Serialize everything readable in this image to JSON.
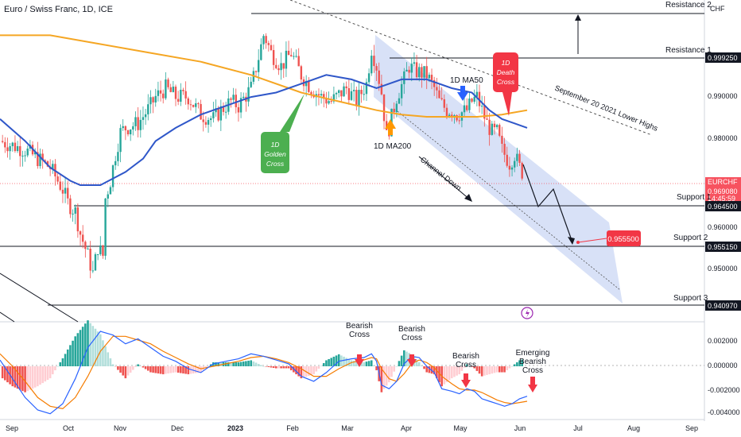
{
  "chart_data": {
    "type": "candlestick",
    "title": "Euro / Swiss Franc, 1D, ICE",
    "currency": "CHF",
    "symbol": "EURCHF",
    "last_price": "0.969080",
    "countdown": "14:45:59",
    "x_ticks": [
      "Sep",
      "Oct",
      "Nov",
      "Dec",
      "2023",
      "Feb",
      "Mar",
      "Apr",
      "May",
      "Jun",
      "Jul",
      "Aug",
      "Sep"
    ],
    "y_ticks": [
      "0.990000",
      "0.980000",
      "0.960000",
      "0.950000"
    ],
    "ylim": [
      0.935,
      1.008
    ],
    "series_path": [
      [
        0,
        0.976
      ],
      [
        10,
        0.974
      ],
      [
        20,
        0.97
      ],
      [
        25,
        0.965
      ],
      [
        27,
        0.962
      ],
      [
        30,
        0.96
      ],
      [
        32,
        0.955
      ],
      [
        35,
        0.95
      ],
      [
        37,
        0.946
      ],
      [
        39,
        0.952
      ],
      [
        41,
        0.95
      ],
      [
        42,
        0.963
      ],
      [
        44,
        0.967
      ],
      [
        46,
        0.973
      ],
      [
        48,
        0.978
      ],
      [
        50,
        0.979
      ],
      [
        55,
        0.98
      ],
      [
        60,
        0.984
      ],
      [
        62,
        0.986
      ],
      [
        66,
        0.988
      ],
      [
        70,
        0.986
      ],
      [
        75,
        0.986
      ],
      [
        80,
        0.982
      ],
      [
        85,
        0.981
      ],
      [
        88,
        0.983
      ],
      [
        92,
        0.985
      ],
      [
        95,
        0.984
      ],
      [
        100,
        0.988
      ],
      [
        103,
        0.995
      ],
      [
        105,
        1.0
      ],
      [
        106,
        0.999
      ],
      [
        108,
        0.996
      ],
      [
        112,
        0.993
      ],
      [
        116,
        0.996
      ],
      [
        120,
        0.991
      ],
      [
        124,
        0.988
      ],
      [
        128,
        0.986
      ],
      [
        132,
        0.985
      ],
      [
        138,
        0.988
      ],
      [
        142,
        0.985
      ],
      [
        146,
        0.989
      ],
      [
        148,
        0.997
      ],
      [
        150,
        0.993
      ],
      [
        152,
        0.987
      ],
      [
        153,
        0.982
      ],
      [
        154,
        0.977
      ],
      [
        155,
        0.979
      ],
      [
        158,
        0.986
      ],
      [
        161,
        0.99
      ],
      [
        163,
        0.993
      ],
      [
        165,
        0.992
      ],
      [
        170,
        0.991
      ],
      [
        173,
        0.988
      ],
      [
        175,
        0.985
      ],
      [
        178,
        0.983
      ],
      [
        180,
        0.983
      ],
      [
        182,
        0.982
      ],
      [
        186,
        0.983
      ],
      [
        188,
        0.985
      ],
      [
        190,
        0.986
      ],
      [
        192,
        0.983
      ],
      [
        194,
        0.98
      ],
      [
        196,
        0.978
      ],
      [
        198,
        0.978
      ],
      [
        200,
        0.974
      ],
      [
        202,
        0.972
      ],
      [
        203,
        0.971
      ],
      [
        205,
        0.973
      ],
      [
        207,
        0.97
      ],
      [
        208,
        0.969
      ]
    ],
    "ma50": [
      [
        0,
        0.981
      ],
      [
        10,
        0.976
      ],
      [
        20,
        0.97
      ],
      [
        28,
        0.967
      ],
      [
        32,
        0.966
      ],
      [
        40,
        0.966
      ],
      [
        50,
        0.969
      ],
      [
        57,
        0.972
      ],
      [
        62,
        0.976
      ],
      [
        70,
        0.979
      ],
      [
        80,
        0.982
      ],
      [
        90,
        0.984
      ],
      [
        100,
        0.986
      ],
      [
        110,
        0.987
      ],
      [
        120,
        0.989
      ],
      [
        130,
        0.991
      ],
      [
        140,
        0.99
      ],
      [
        150,
        0.988
      ],
      [
        160,
        0.99
      ],
      [
        170,
        0.99
      ],
      [
        180,
        0.988
      ],
      [
        188,
        0.987
      ],
      [
        195,
        0.983
      ],
      [
        200,
        0.981
      ],
      [
        205,
        0.98
      ],
      [
        210,
        0.979
      ]
    ],
    "ma200": [
      [
        0,
        1.0
      ],
      [
        20,
        1.0
      ],
      [
        40,
        0.998
      ],
      [
        60,
        0.996
      ],
      [
        80,
        0.994
      ],
      [
        100,
        0.991
      ],
      [
        120,
        0.987
      ],
      [
        135,
        0.985
      ],
      [
        150,
        0.983
      ],
      [
        160,
        0.982
      ],
      [
        170,
        0.9815
      ],
      [
        180,
        0.9815
      ],
      [
        190,
        0.9815
      ],
      [
        200,
        0.982
      ],
      [
        210,
        0.983
      ]
    ],
    "resistance_levels": [
      {
        "name": "Resistance 2",
        "value": null
      },
      {
        "name": "Resistance 1",
        "value": "0.999250"
      }
    ],
    "support_levels": [
      {
        "name": "Support 1",
        "value": "0.964500"
      },
      {
        "name": "Support 2",
        "value": "0.955150"
      },
      {
        "name": "Support 3",
        "value": "0.940970"
      }
    ],
    "target": "0.955500",
    "annotations": [
      {
        "text": "1D MA50"
      },
      {
        "text": "1D MA200"
      },
      {
        "text": "1D Death Cross"
      },
      {
        "text": "1D Golden Cross"
      },
      {
        "text": "September 20 2021 Lower Highs"
      },
      {
        "text": "Channel Down"
      }
    ],
    "macd": {
      "y_ticks": [
        "0.002000",
        "0.000000",
        "-0.002000",
        "-0.004000"
      ],
      "ylim": [
        -0.0042,
        0.0035
      ],
      "annotations": [
        "Bearish Cross",
        "Bearish Cross",
        "Bearish Cross",
        "Emerging Bearish Cross"
      ],
      "macd_line": [
        [
          0,
          0.0005
        ],
        [
          5,
          -0.001
        ],
        [
          10,
          -0.0025
        ],
        [
          15,
          -0.0035
        ],
        [
          20,
          -0.0038
        ],
        [
          25,
          -0.003
        ],
        [
          30,
          -0.001
        ],
        [
          35,
          0.0015
        ],
        [
          40,
          0.0028
        ],
        [
          45,
          0.0025
        ],
        [
          50,
          0.0018
        ],
        [
          55,
          0.0022
        ],
        [
          60,
          0.0015
        ],
        [
          65,
          0.0008
        ],
        [
          70,
          0.0004
        ],
        [
          75,
          -0.0002
        ],
        [
          80,
          -0.0005
        ],
        [
          85,
          0.0002
        ],
        [
          90,
          0.0004
        ],
        [
          95,
          0.0006
        ],
        [
          100,
          0.001
        ],
        [
          105,
          0.0008
        ],
        [
          110,
          0.0005
        ],
        [
          115,
          0.0002
        ],
        [
          120,
          -0.0008
        ],
        [
          125,
          -0.0012
        ],
        [
          130,
          -0.0005
        ],
        [
          135,
          0.0004
        ],
        [
          140,
          0.0006
        ],
        [
          145,
          0.0007
        ],
        [
          148,
          0.001
        ],
        [
          150,
          0.0004
        ],
        [
          152,
          -0.0015
        ],
        [
          155,
          -0.0018
        ],
        [
          158,
          -0.0012
        ],
        [
          161,
          0.0002
        ],
        [
          164,
          0.0008
        ],
        [
          167,
          0.0007
        ],
        [
          170,
          0.0
        ],
        [
          173,
          -0.0005
        ],
        [
          176,
          -0.0018
        ],
        [
          180,
          -0.002
        ],
        [
          183,
          -0.0022
        ],
        [
          186,
          -0.0018
        ],
        [
          189,
          -0.002
        ],
        [
          192,
          -0.0026
        ],
        [
          195,
          -0.0028
        ],
        [
          198,
          -0.003
        ],
        [
          201,
          -0.0032
        ],
        [
          204,
          -0.003
        ],
        [
          207,
          -0.0026
        ],
        [
          210,
          -0.0024
        ]
      ],
      "signal_line": [
        [
          0,
          0.001
        ],
        [
          5,
          0.0
        ],
        [
          10,
          -0.0012
        ],
        [
          15,
          -0.0025
        ],
        [
          20,
          -0.0032
        ],
        [
          25,
          -0.0034
        ],
        [
          30,
          -0.0025
        ],
        [
          35,
          -0.0008
        ],
        [
          40,
          0.0012
        ],
        [
          45,
          0.0024
        ],
        [
          50,
          0.0024
        ],
        [
          55,
          0.0021
        ],
        [
          60,
          0.0018
        ],
        [
          65,
          0.0012
        ],
        [
          70,
          0.0007
        ],
        [
          75,
          0.0002
        ],
        [
          80,
          -0.0002
        ],
        [
          85,
          0.0
        ],
        [
          90,
          0.0002
        ],
        [
          95,
          0.0004
        ],
        [
          100,
          0.0007
        ],
        [
          105,
          0.0008
        ],
        [
          110,
          0.0006
        ],
        [
          115,
          0.0003
        ],
        [
          120,
          -0.0002
        ],
        [
          125,
          -0.0008
        ],
        [
          130,
          -0.0008
        ],
        [
          135,
          -0.0002
        ],
        [
          140,
          0.0003
        ],
        [
          145,
          0.0005
        ],
        [
          148,
          0.0007
        ],
        [
          150,
          0.0006
        ],
        [
          152,
          -0.0002
        ],
        [
          155,
          -0.001
        ],
        [
          158,
          -0.0012
        ],
        [
          161,
          -0.0006
        ],
        [
          164,
          0.0002
        ],
        [
          167,
          0.0005
        ],
        [
          170,
          0.0003
        ],
        [
          173,
          -0.0001
        ],
        [
          176,
          -0.0008
        ],
        [
          180,
          -0.0014
        ],
        [
          183,
          -0.0018
        ],
        [
          186,
          -0.0019
        ],
        [
          189,
          -0.0019
        ],
        [
          192,
          -0.0021
        ],
        [
          195,
          -0.0024
        ],
        [
          198,
          -0.0027
        ],
        [
          201,
          -0.0029
        ],
        [
          204,
          -0.003
        ],
        [
          207,
          -0.0029
        ],
        [
          210,
          -0.0028
        ]
      ]
    }
  }
}
